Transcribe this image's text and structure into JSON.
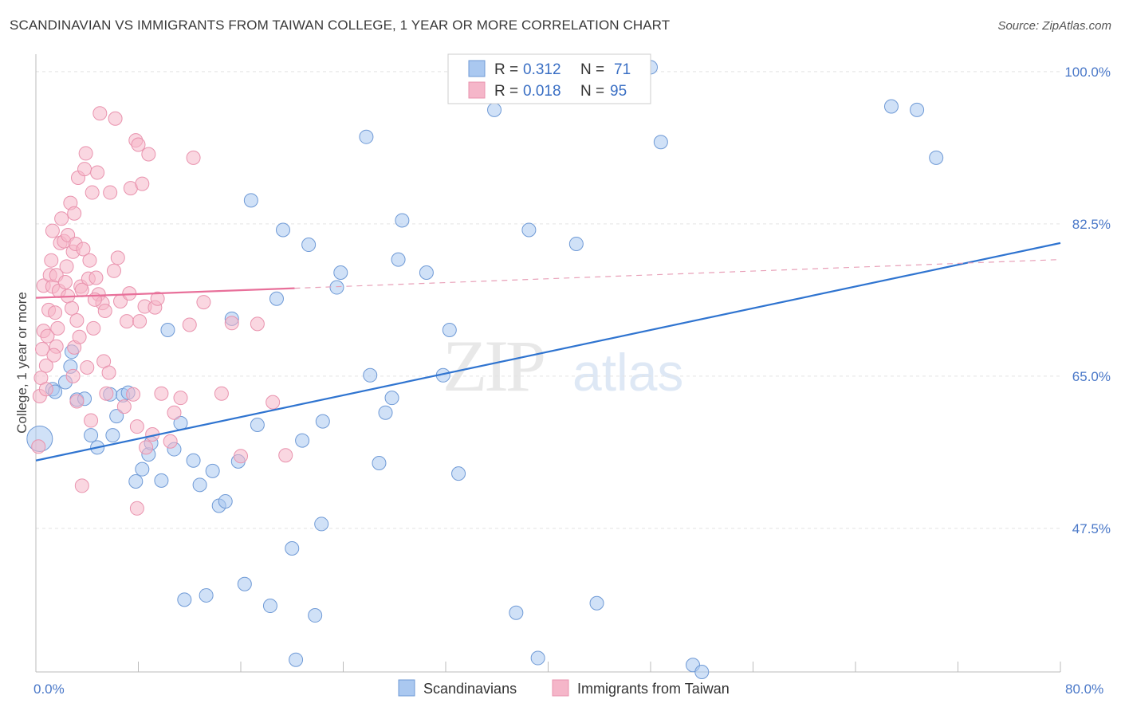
{
  "header": {
    "title": "SCANDINAVIAN VS IMMIGRANTS FROM TAIWAN COLLEGE, 1 YEAR OR MORE CORRELATION CHART",
    "source": "Source: ZipAtlas.com"
  },
  "legend_box": {
    "row1": {
      "r_label": "R =",
      "r_value": "0.312",
      "n_label": "N =",
      "n_value": "71"
    },
    "row2": {
      "r_label": "R =",
      "r_value": "0.018",
      "n_label": "N =",
      "n_value": "95"
    }
  },
  "watermark": {
    "zip": "ZIP",
    "atlas": "atlas"
  },
  "colors": {
    "blue_fill": "#aac8f0",
    "blue_stroke": "#6f9ad6",
    "blue_line": "#2f74d0",
    "pink_fill": "#f5b6c9",
    "pink_stroke": "#e993ae",
    "pink_line": "#e8709a"
  },
  "chart_data": {
    "type": "scatter",
    "title": "SCANDINAVIAN VS IMMIGRANTS FROM TAIWAN COLLEGE, 1 YEAR OR MORE CORRELATION CHART",
    "xlabel": "",
    "ylabel": "College, 1 year or more",
    "xlim": [
      0,
      80
    ],
    "ylim": [
      31,
      102
    ],
    "x_tick_labels": [
      "0.0%",
      "80.0%"
    ],
    "y_ticks": [
      47.5,
      65.0,
      82.5,
      100.0
    ],
    "y_tick_labels": [
      "47.5%",
      "65.0%",
      "82.5%",
      "100.0%"
    ],
    "series": [
      {
        "name": "Scandinavians",
        "color": "blue",
        "trend": {
          "x0": 0,
          "y0": 55.3,
          "x1": 80,
          "y1": 80.3
        },
        "points": [
          [
            0.3,
            57.8
          ],
          [
            1.3,
            63.5
          ],
          [
            1.5,
            63.2
          ],
          [
            2.3,
            64.3
          ],
          [
            2.7,
            66.1
          ],
          [
            2.8,
            67.8
          ],
          [
            3.2,
            62.3
          ],
          [
            3.8,
            62.4
          ],
          [
            4.3,
            58.2
          ],
          [
            4.8,
            56.8
          ],
          [
            5.8,
            62.9
          ],
          [
            6.0,
            58.2
          ],
          [
            6.3,
            60.4
          ],
          [
            6.8,
            62.8
          ],
          [
            7.2,
            63.1
          ],
          [
            7.8,
            52.9
          ],
          [
            8.3,
            54.3
          ],
          [
            8.8,
            56.0
          ],
          [
            9.0,
            57.3
          ],
          [
            9.8,
            53.0
          ],
          [
            10.3,
            70.3
          ],
          [
            10.8,
            56.6
          ],
          [
            11.3,
            59.6
          ],
          [
            11.6,
            39.3
          ],
          [
            12.3,
            55.3
          ],
          [
            12.8,
            52.5
          ],
          [
            13.3,
            39.8
          ],
          [
            13.8,
            54.1
          ],
          [
            14.3,
            50.1
          ],
          [
            14.8,
            50.6
          ],
          [
            15.3,
            71.6
          ],
          [
            15.8,
            55.2
          ],
          [
            16.3,
            41.1
          ],
          [
            16.8,
            85.2
          ],
          [
            17.3,
            59.4
          ],
          [
            18.3,
            38.6
          ],
          [
            18.8,
            73.9
          ],
          [
            19.3,
            81.8
          ],
          [
            20.0,
            45.2
          ],
          [
            20.3,
            32.4
          ],
          [
            20.8,
            57.6
          ],
          [
            21.3,
            80.1
          ],
          [
            21.8,
            37.5
          ],
          [
            22.3,
            48.0
          ],
          [
            22.4,
            59.8
          ],
          [
            23.5,
            75.2
          ],
          [
            23.8,
            76.9
          ],
          [
            25.8,
            92.5
          ],
          [
            26.1,
            65.1
          ],
          [
            26.8,
            55.0
          ],
          [
            27.3,
            60.8
          ],
          [
            27.8,
            62.5
          ],
          [
            28.3,
            78.4
          ],
          [
            28.6,
            82.9
          ],
          [
            30.5,
            76.9
          ],
          [
            31.8,
            65.1
          ],
          [
            32.3,
            70.3
          ],
          [
            33.0,
            53.8
          ],
          [
            35.8,
            95.6
          ],
          [
            37.5,
            37.8
          ],
          [
            38.5,
            81.8
          ],
          [
            39.2,
            32.6
          ],
          [
            42.2,
            80.2
          ],
          [
            43.8,
            38.9
          ],
          [
            48.0,
            100.5
          ],
          [
            48.8,
            91.9
          ],
          [
            51.3,
            31.8
          ],
          [
            52.0,
            31.0
          ],
          [
            66.8,
            96.0
          ],
          [
            68.8,
            95.6
          ],
          [
            70.3,
            90.1
          ]
        ]
      },
      {
        "name": "Immigrants from Taiwan",
        "color": "pink",
        "trend_solid": {
          "x0": 0,
          "y0": 74.0,
          "x1": 20.2,
          "y1": 75.1
        },
        "trend_dashed": {
          "x0": 20.2,
          "y0": 75.1,
          "x1": 80,
          "y1": 78.4
        },
        "points": [
          [
            0.2,
            56.9
          ],
          [
            0.3,
            62.7
          ],
          [
            0.4,
            64.8
          ],
          [
            0.5,
            68.1
          ],
          [
            0.6,
            70.2
          ],
          [
            0.6,
            75.4
          ],
          [
            0.8,
            63.5
          ],
          [
            0.9,
            69.6
          ],
          [
            1.0,
            72.6
          ],
          [
            1.1,
            76.6
          ],
          [
            1.2,
            78.3
          ],
          [
            1.3,
            75.3
          ],
          [
            1.3,
            81.7
          ],
          [
            1.5,
            72.3
          ],
          [
            1.6,
            68.4
          ],
          [
            1.6,
            76.6
          ],
          [
            1.7,
            70.5
          ],
          [
            1.8,
            74.8
          ],
          [
            1.9,
            80.3
          ],
          [
            2.0,
            83.1
          ],
          [
            2.2,
            80.5
          ],
          [
            2.3,
            75.8
          ],
          [
            2.5,
            81.2
          ],
          [
            2.5,
            74.2
          ],
          [
            2.7,
            84.9
          ],
          [
            2.8,
            72.8
          ],
          [
            2.9,
            65.0
          ],
          [
            2.9,
            79.3
          ],
          [
            3.0,
            68.3
          ],
          [
            3.0,
            83.7
          ],
          [
            3.1,
            80.2
          ],
          [
            3.2,
            71.4
          ],
          [
            3.2,
            62.1
          ],
          [
            3.3,
            87.8
          ],
          [
            3.4,
            69.5
          ],
          [
            3.5,
            75.3
          ],
          [
            3.6,
            52.4
          ],
          [
            3.7,
            79.6
          ],
          [
            3.8,
            88.8
          ],
          [
            3.9,
            90.6
          ],
          [
            4.0,
            66.0
          ],
          [
            4.1,
            76.2
          ],
          [
            4.2,
            78.3
          ],
          [
            4.3,
            59.9
          ],
          [
            4.4,
            86.1
          ],
          [
            4.5,
            70.5
          ],
          [
            4.7,
            76.3
          ],
          [
            4.8,
            88.4
          ],
          [
            4.9,
            74.4
          ],
          [
            5.0,
            95.2
          ],
          [
            5.2,
            73.4
          ],
          [
            5.3,
            66.7
          ],
          [
            5.4,
            72.5
          ],
          [
            5.5,
            63.0
          ],
          [
            5.7,
            65.4
          ],
          [
            5.8,
            86.1
          ],
          [
            6.1,
            77.1
          ],
          [
            6.2,
            94.6
          ],
          [
            6.4,
            78.6
          ],
          [
            6.6,
            73.6
          ],
          [
            6.9,
            61.5
          ],
          [
            7.1,
            71.3
          ],
          [
            7.3,
            74.5
          ],
          [
            7.4,
            86.6
          ],
          [
            7.6,
            62.9
          ],
          [
            7.8,
            92.1
          ],
          [
            7.9,
            59.2
          ],
          [
            7.9,
            49.8
          ],
          [
            8.0,
            91.6
          ],
          [
            8.1,
            71.3
          ],
          [
            8.3,
            87.1
          ],
          [
            8.5,
            73.0
          ],
          [
            8.6,
            56.8
          ],
          [
            8.8,
            90.5
          ],
          [
            9.1,
            58.3
          ],
          [
            9.3,
            72.9
          ],
          [
            9.5,
            73.9
          ],
          [
            9.8,
            63.0
          ],
          [
            10.5,
            57.5
          ],
          [
            10.8,
            60.8
          ],
          [
            11.3,
            62.5
          ],
          [
            12.0,
            70.9
          ],
          [
            12.3,
            90.1
          ],
          [
            13.1,
            73.5
          ],
          [
            14.5,
            63.0
          ],
          [
            15.3,
            71.1
          ],
          [
            16.0,
            55.8
          ],
          [
            17.3,
            71.0
          ],
          [
            18.5,
            62.0
          ],
          [
            19.5,
            55.9
          ],
          [
            0.8,
            66.2
          ],
          [
            1.4,
            67.4
          ],
          [
            2.4,
            77.6
          ],
          [
            3.6,
            74.9
          ],
          [
            4.6,
            73.8
          ]
        ]
      }
    ]
  },
  "bottom_legend": {
    "item1": "Scandinavians",
    "item2": "Immigrants from Taiwan"
  }
}
